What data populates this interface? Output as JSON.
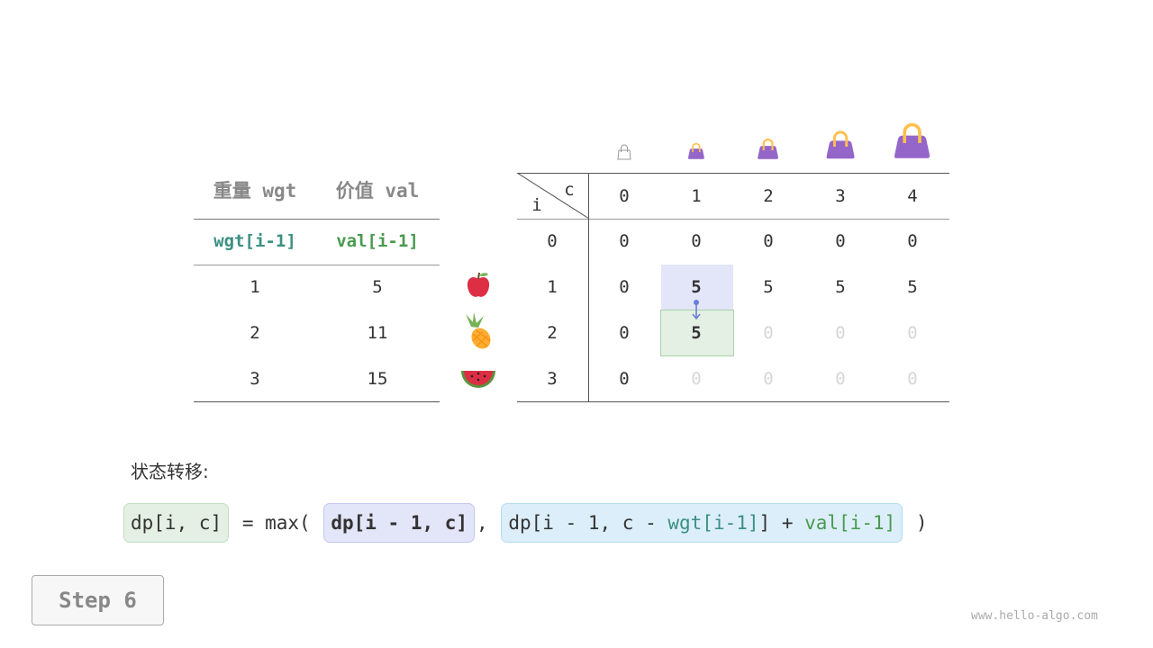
{
  "left_table": {
    "headers": [
      "重量 wgt",
      "价值 val"
    ],
    "subheaders": [
      "wgt[i-1]",
      "val[i-1]"
    ],
    "rows": [
      [
        "1",
        "5"
      ],
      [
        "2",
        "11"
      ],
      [
        "3",
        "15"
      ]
    ],
    "items": [
      "apple-icon",
      "pineapple-icon",
      "watermelon-icon"
    ]
  },
  "dp_table": {
    "corner_c": "c",
    "corner_i": "i",
    "col_headers": [
      "0",
      "1",
      "2",
      "3",
      "4"
    ],
    "row_headers": [
      "0",
      "1",
      "2",
      "3"
    ],
    "rows": [
      [
        "0",
        "0",
        "0",
        "0",
        "0"
      ],
      [
        "0",
        "5",
        "5",
        "5",
        "5"
      ],
      [
        "0",
        "5",
        "0",
        "0",
        "0"
      ],
      [
        "0",
        "0",
        "0",
        "0",
        "0"
      ]
    ],
    "capacity_icons": [
      "bag-icon-0",
      "bag-icon-1",
      "bag-icon-2",
      "bag-icon-3",
      "bag-icon-4"
    ]
  },
  "formula": {
    "label": "状态转移:",
    "lhs": "dp[i, c]",
    "eq": "= max(",
    "opt1": "dp[i - 1, c]",
    "comma": ",",
    "opt2_a": "dp[i - 1, c - ",
    "opt2_wgt": "wgt[i-1]",
    "opt2_b": "] + ",
    "opt2_val": "val[i-1]",
    "close": ")"
  },
  "step_label": "Step 6",
  "watermark": "www.hello-algo.com",
  "colors": {
    "wgt": "#3b9083",
    "val": "#4a9a4f",
    "blue_cell": "#e3e5f8",
    "green_cell": "#e3f0e3",
    "bag": "#9466c9"
  }
}
